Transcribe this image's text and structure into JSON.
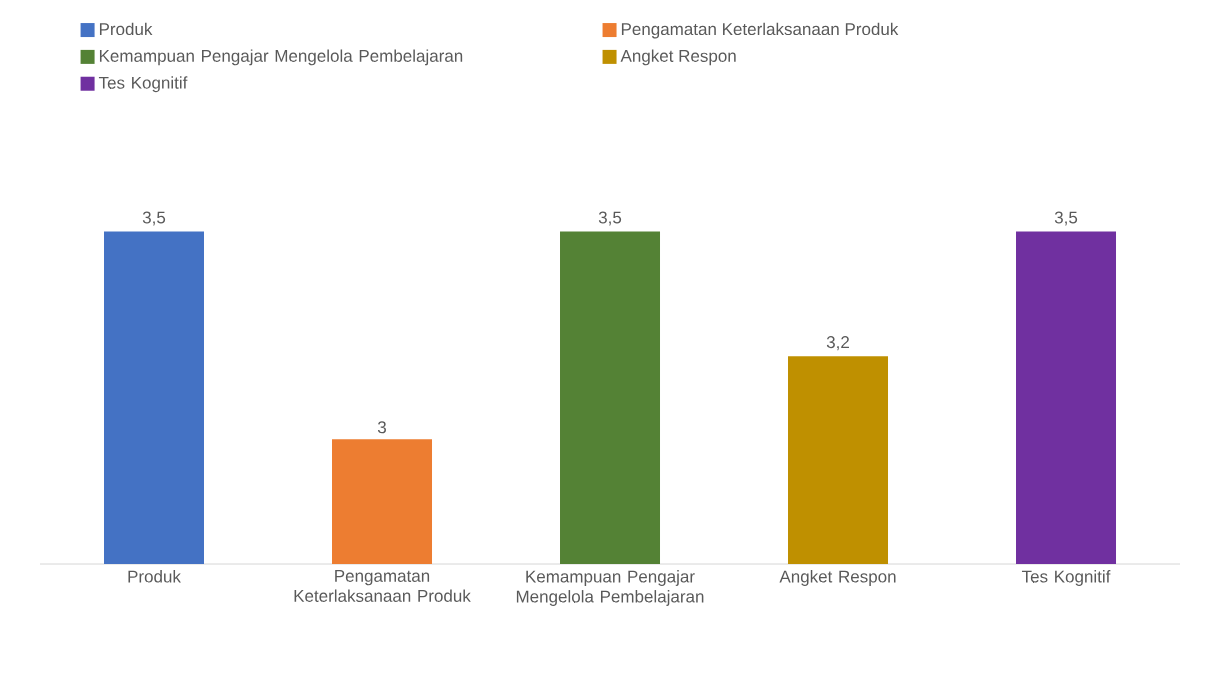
{
  "chart_data": {
    "type": "bar",
    "categories": [
      "Produk",
      "Pengamatan Keterlaksanaan Produk",
      "Kemampuan Pengajar Mengelola Pembelajaran",
      "Angket Respon",
      "Tes Kognitif"
    ],
    "series": [
      {
        "name": "Produk",
        "color": "#4472c4",
        "values": [
          3.5,
          null,
          null,
          null,
          null
        ],
        "value_labels": [
          "3,5",
          null,
          null,
          null,
          null
        ]
      },
      {
        "name": "Pengamatan Keterlaksanaan Produk",
        "color": "#ed7d31",
        "values": [
          null,
          3,
          null,
          null,
          null
        ],
        "value_labels": [
          null,
          "3",
          null,
          null,
          null
        ]
      },
      {
        "name": "Kemampuan Pengajar Mengelola Pembelajaran",
        "color": "#548235",
        "values": [
          null,
          null,
          3.5,
          null,
          null
        ],
        "value_labels": [
          null,
          null,
          "3,5",
          null,
          null
        ]
      },
      {
        "name": "Angket Respon",
        "color": "#bf9000",
        "values": [
          null,
          null,
          null,
          3.2,
          null
        ],
        "value_labels": [
          null,
          null,
          null,
          "3,2",
          null
        ]
      },
      {
        "name": "Tes Kognitif",
        "color": "#7030a0",
        "values": [
          null,
          null,
          null,
          null,
          3.5
        ],
        "value_labels": [
          null,
          null,
          null,
          null,
          "3,5"
        ]
      }
    ],
    "ylim": [
      2.7,
      3.5
    ],
    "legend": "top left"
  }
}
